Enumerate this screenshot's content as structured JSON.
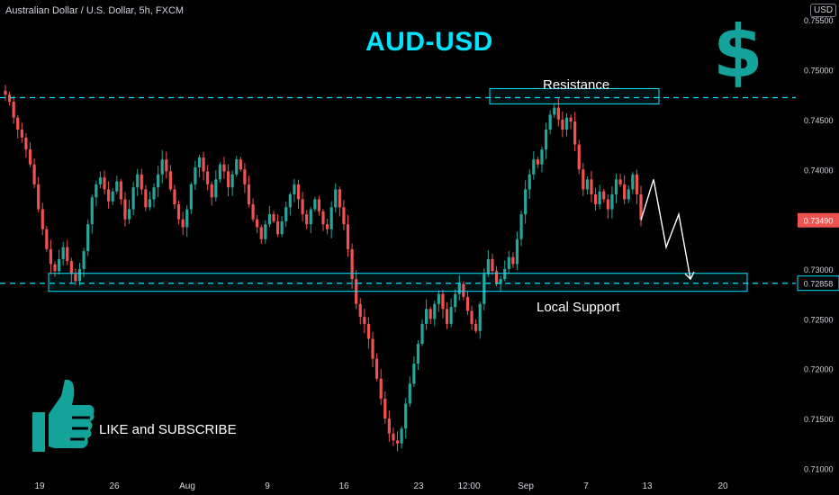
{
  "header": {
    "symbol": "Australian Dollar / U.S. Dollar, 5h, FXCM",
    "currency": "USD"
  },
  "annotations": {
    "title": "AUD-USD",
    "dollar_sign": "$",
    "resistance_label": "Resistance",
    "support_label": "Local Support",
    "like_text": "LIKE and SUBSCRIBE",
    "icons": [
      "thumbs-up-icon",
      "dollar-icon"
    ]
  },
  "colors": {
    "up": "#26a69a",
    "down": "#ef5350",
    "accent": "#00e5ff",
    "dollar": "#13a39a",
    "price_tag": "#ef5350",
    "support_tag": "#00e5ff"
  },
  "chart_data": {
    "type": "candlestick",
    "y_ticks": [
      "0.75500",
      "0.75000",
      "0.74500",
      "0.74000",
      "0.73500",
      "0.73000",
      "0.72500",
      "0.72000",
      "0.71500",
      "0.71000"
    ],
    "x_ticks": [
      "19",
      "26",
      "Aug",
      "9",
      "16",
      "23",
      "12:00",
      "Sep",
      "7",
      "13",
      "20"
    ],
    "ylim": [
      0.7095,
      0.757
    ],
    "resistance_level": 0.7472,
    "support_level": 0.72858,
    "current_price": "0.73490",
    "support_price": "0.72858",
    "close_path": [
      0.7475,
      0.7468,
      0.7452,
      0.744,
      0.7432,
      0.742,
      0.7405,
      0.7385,
      0.736,
      0.734,
      0.732,
      0.7305,
      0.7298,
      0.731,
      0.7322,
      0.7308,
      0.7295,
      0.7288,
      0.73,
      0.7318,
      0.7345,
      0.7372,
      0.7385,
      0.7392,
      0.738,
      0.7368,
      0.7378,
      0.7388,
      0.737,
      0.735,
      0.736,
      0.7382,
      0.7395,
      0.738,
      0.7362,
      0.737,
      0.7382,
      0.7395,
      0.741,
      0.7398,
      0.738,
      0.7365,
      0.735,
      0.7342,
      0.736,
      0.7385,
      0.7402,
      0.7412,
      0.7398,
      0.7385,
      0.7372,
      0.739,
      0.7405,
      0.7398,
      0.7382,
      0.7395,
      0.741,
      0.74,
      0.7385,
      0.7365,
      0.735,
      0.7342,
      0.733,
      0.7345,
      0.7355,
      0.7348,
      0.7335,
      0.7348,
      0.7362,
      0.7375,
      0.7385,
      0.737,
      0.7355,
      0.7345,
      0.736,
      0.737,
      0.7358,
      0.7345,
      0.734,
      0.7362,
      0.738,
      0.7362,
      0.7345,
      0.732,
      0.729,
      0.7265,
      0.7252,
      0.7245,
      0.723,
      0.721,
      0.719,
      0.717,
      0.715,
      0.7135,
      0.7128,
      0.7125,
      0.714,
      0.7165,
      0.7185,
      0.7205,
      0.7225,
      0.7245,
      0.726,
      0.725,
      0.7265,
      0.7275,
      0.726,
      0.7245,
      0.7262,
      0.7275,
      0.7285,
      0.7272,
      0.7258,
      0.7245,
      0.7238,
      0.7265,
      0.7295,
      0.731,
      0.7298,
      0.7285,
      0.729,
      0.73,
      0.7312,
      0.7305,
      0.733,
      0.7355,
      0.738,
      0.7395,
      0.741,
      0.7405,
      0.742,
      0.744,
      0.7455,
      0.7462,
      0.745,
      0.744,
      0.7452,
      0.7448,
      0.7425,
      0.74,
      0.738,
      0.739,
      0.7375,
      0.7365,
      0.7378,
      0.737,
      0.736,
      0.7375,
      0.739,
      0.7385,
      0.737,
      0.738,
      0.7395,
      0.7375,
      0.735
    ],
    "projection": [
      0.7349,
      0.739,
      0.7322,
      0.7355,
      0.729
    ]
  }
}
